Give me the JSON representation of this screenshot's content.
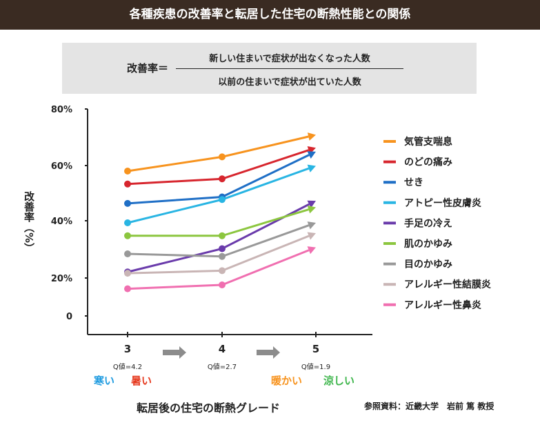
{
  "header": {
    "title": "各種疾患の改善率と転居した住宅の断熱性能との関係"
  },
  "formula": {
    "lhs": "改善率＝",
    "numerator": "新しい住まいで症状が出なくなった人数",
    "denominator": "以前の住まいで症状が出ていた人数"
  },
  "chart_data": {
    "type": "line",
    "ylabel": "改善率（%）",
    "xlabel": "転居後の住宅の断熱グレード",
    "x": [
      "3",
      "4",
      "5"
    ],
    "x_sublabels": [
      "Q値=4.2",
      "Q値=2.7",
      "Q値=1.9"
    ],
    "y_ticks": [
      "80%",
      "60%",
      "40%",
      "20%",
      "0"
    ],
    "y_tick_values": [
      80,
      60,
      40,
      20,
      0
    ],
    "ylim": [
      0,
      80
    ],
    "legend_position": "right",
    "series": [
      {
        "name": "気管支喘息",
        "color": "#f7931e",
        "values": [
          56,
          61.5,
          70
        ]
      },
      {
        "name": "のどの痛み",
        "color": "#d7262e",
        "values": [
          51,
          53,
          65
        ]
      },
      {
        "name": "せき",
        "color": "#1f6fc6",
        "values": [
          43.5,
          46,
          63.5
        ]
      },
      {
        "name": "アトピー性皮膚炎",
        "color": "#29b5e3",
        "values": [
          36,
          45,
          58
        ]
      },
      {
        "name": "手足の冷え",
        "color": "#6a3bab",
        "values": [
          17,
          26,
          44.5
        ]
      },
      {
        "name": "肌のかゆみ",
        "color": "#8cc63f",
        "values": [
          31,
          31,
          42
        ]
      },
      {
        "name": "目のかゆみ",
        "color": "#999999",
        "values": [
          24,
          23,
          36
        ]
      },
      {
        "name": "アレルギー性結膜炎",
        "color": "#c9b5b5",
        "values": [
          16.5,
          17.5,
          32
        ]
      },
      {
        "name": "アレルギー性鼻炎",
        "color": "#f06fb0",
        "values": [
          10.5,
          12,
          26.5
        ]
      }
    ]
  },
  "labels": {
    "cold": "寒い",
    "cold_color": "#1e9be0",
    "hot": "暑い",
    "hot_color": "#e63a1f",
    "warm": "暖かい",
    "warm_color": "#f7931e",
    "cool": "涼しい",
    "cool_color": "#3cb54a"
  },
  "source": "参照資料：近畿大学　岩前 篤 教授"
}
